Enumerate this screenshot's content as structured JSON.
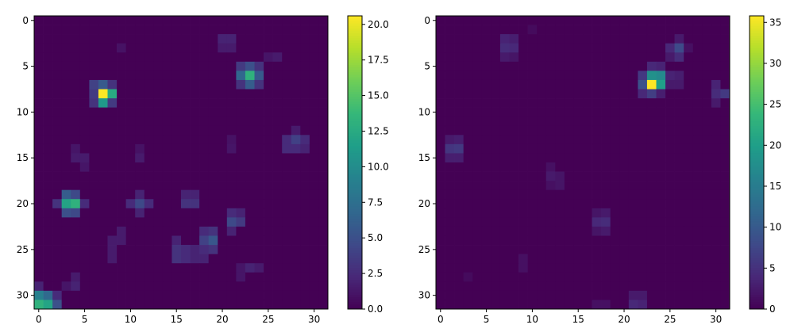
{
  "colormap": "viridis",
  "colors": {
    "viridis_stops": [
      "#440154",
      "#482878",
      "#3e4a89",
      "#31688e",
      "#26828e",
      "#1f9e89",
      "#35b779",
      "#6ece58",
      "#b5de2b",
      "#fde725"
    ]
  },
  "chart_data": [
    {
      "type": "heatmap",
      "title": "",
      "xlabel": "",
      "ylabel": "",
      "grid": false,
      "shape": [
        32,
        32
      ],
      "x_ticks": [
        "0",
        "5",
        "10",
        "15",
        "20",
        "25",
        "30"
      ],
      "y_ticks": [
        "0",
        "5",
        "10",
        "15",
        "20",
        "25",
        "30"
      ],
      "colorbar": {
        "vmin": 0,
        "vmax": 20.6,
        "ticks": [
          "0.0",
          "2.5",
          "5.0",
          "7.5",
          "10.0",
          "12.5",
          "15.0",
          "17.5",
          "20.0"
        ],
        "tick_values": [
          0,
          2.5,
          5,
          7.5,
          10,
          12.5,
          15,
          17.5,
          20
        ]
      },
      "cells": [
        [
          8,
          7,
          20.6
        ],
        [
          8,
          8,
          12.5
        ],
        [
          7,
          7,
          5.8
        ],
        [
          9,
          7,
          11.0
        ],
        [
          7,
          6,
          4.0
        ],
        [
          8,
          6,
          3.5
        ],
        [
          9,
          6,
          3.0
        ],
        [
          7,
          8,
          3.0
        ],
        [
          9,
          8,
          3.5
        ],
        [
          6,
          23,
          13.2
        ],
        [
          7,
          23,
          6.0
        ],
        [
          6,
          22,
          6.8
        ],
        [
          6,
          24,
          5.8
        ],
        [
          5,
          23,
          5.0
        ],
        [
          5,
          22,
          3.5
        ],
        [
          7,
          22,
          3.0
        ],
        [
          5,
          24,
          3.0
        ],
        [
          7,
          24,
          3.0
        ],
        [
          20,
          4,
          13.2
        ],
        [
          20,
          3,
          12.0
        ],
        [
          19,
          3,
          6.0
        ],
        [
          19,
          4,
          4.5
        ],
        [
          21,
          3,
          5.0
        ],
        [
          21,
          4,
          4.5
        ],
        [
          20,
          2,
          3.0
        ],
        [
          20,
          5,
          2.5
        ],
        [
          31,
          0,
          13.2
        ],
        [
          31,
          1,
          12.0
        ],
        [
          30,
          0,
          9.0
        ],
        [
          30,
          1,
          7.0
        ],
        [
          31,
          2,
          5.0
        ],
        [
          30,
          2,
          2.5
        ],
        [
          29,
          0,
          2.0
        ],
        [
          2,
          20,
          2.0
        ],
        [
          2,
          21,
          2.0
        ],
        [
          3,
          20,
          1.5
        ],
        [
          3,
          21,
          1.5
        ],
        [
          4,
          26,
          1.5
        ],
        [
          4,
          25,
          1.2
        ],
        [
          3,
          9,
          1.0
        ],
        [
          20,
          11,
          4.5
        ],
        [
          20,
          10,
          2.5
        ],
        [
          20,
          12,
          2.5
        ],
        [
          19,
          11,
          2.0
        ],
        [
          21,
          11,
          2.0
        ],
        [
          20,
          16,
          3.0
        ],
        [
          20,
          17,
          3.0
        ],
        [
          19,
          16,
          2.0
        ],
        [
          19,
          17,
          2.0
        ],
        [
          22,
          21,
          4.5
        ],
        [
          22,
          22,
          3.5
        ],
        [
          21,
          21,
          2.5
        ],
        [
          21,
          22,
          2.0
        ],
        [
          23,
          21,
          2.0
        ],
        [
          24,
          19,
          5.5
        ],
        [
          24,
          18,
          4.0
        ],
        [
          23,
          19,
          3.0
        ],
        [
          25,
          19,
          3.0
        ],
        [
          25,
          18,
          2.5
        ],
        [
          23,
          18,
          2.5
        ],
        [
          25,
          15,
          3.0
        ],
        [
          26,
          15,
          3.0
        ],
        [
          25,
          16,
          2.5
        ],
        [
          26,
          16,
          2.5
        ],
        [
          26,
          17,
          2.0
        ],
        [
          26,
          18,
          2.0
        ],
        [
          25,
          17,
          2.0
        ],
        [
          24,
          15,
          2.0
        ],
        [
          24,
          9,
          1.5
        ],
        [
          24,
          8,
          1.5
        ],
        [
          23,
          9,
          1.5
        ],
        [
          25,
          8,
          1.5
        ],
        [
          26,
          8,
          1.5
        ],
        [
          13,
          28,
          4.0
        ],
        [
          13,
          27,
          2.5
        ],
        [
          14,
          28,
          2.5
        ],
        [
          14,
          27,
          2.5
        ],
        [
          12,
          28,
          1.5
        ],
        [
          13,
          29,
          2.5
        ],
        [
          14,
          29,
          2.0
        ],
        [
          14,
          21,
          1.2
        ],
        [
          13,
          21,
          1.0
        ],
        [
          15,
          4,
          1.5
        ],
        [
          15,
          5,
          1.5
        ],
        [
          14,
          4,
          1.2
        ],
        [
          16,
          5,
          1.2
        ],
        [
          15,
          11,
          1.5
        ],
        [
          14,
          11,
          1.0
        ],
        [
          29,
          4,
          2.0
        ],
        [
          28,
          4,
          1.5
        ],
        [
          29,
          3,
          1.2
        ],
        [
          27,
          23,
          2.0
        ],
        [
          27,
          24,
          1.5
        ],
        [
          28,
          22,
          1.2
        ],
        [
          27,
          22,
          1.2
        ]
      ]
    },
    {
      "type": "heatmap",
      "title": "",
      "xlabel": "",
      "ylabel": "",
      "grid": false,
      "shape": [
        32,
        32
      ],
      "x_ticks": [
        "0",
        "5",
        "10",
        "15",
        "20",
        "25",
        "30"
      ],
      "y_ticks": [
        "0",
        "5",
        "10",
        "15",
        "20",
        "25",
        "30"
      ],
      "colorbar": {
        "vmin": 0,
        "vmax": 35.8,
        "ticks": [
          "0",
          "5",
          "10",
          "15",
          "20",
          "25",
          "30",
          "35"
        ],
        "tick_values": [
          0,
          5,
          10,
          15,
          20,
          25,
          30,
          35
        ]
      },
      "cells": [
        [
          7,
          23,
          35.8
        ],
        [
          6,
          23,
          18.0
        ],
        [
          6,
          24,
          17.0
        ],
        [
          7,
          24,
          20.0
        ],
        [
          7,
          22,
          9.0
        ],
        [
          6,
          22,
          6.0
        ],
        [
          8,
          23,
          6.5
        ],
        [
          8,
          22,
          4.0
        ],
        [
          5,
          23,
          4.0
        ],
        [
          5,
          24,
          3.5
        ],
        [
          8,
          24,
          3.0
        ],
        [
          6,
          25,
          3.5
        ],
        [
          6,
          26,
          3.0
        ],
        [
          7,
          25,
          2.5
        ],
        [
          7,
          26,
          2.5
        ],
        [
          3,
          26,
          8.0
        ],
        [
          3,
          25,
          4.0
        ],
        [
          4,
          26,
          4.5
        ],
        [
          2,
          26,
          2.5
        ],
        [
          4,
          25,
          2.5
        ],
        [
          3,
          27,
          1.5
        ],
        [
          8,
          31,
          6.0
        ],
        [
          8,
          30,
          4.5
        ],
        [
          7,
          30,
          3.5
        ],
        [
          9,
          30,
          2.5
        ],
        [
          14,
          2,
          6.0
        ],
        [
          14,
          1,
          5.5
        ],
        [
          13,
          2,
          3.0
        ],
        [
          15,
          2,
          3.0
        ],
        [
          15,
          1,
          3.0
        ],
        [
          13,
          1,
          2.5
        ],
        [
          3,
          7,
          4.5
        ],
        [
          3,
          8,
          4.0
        ],
        [
          2,
          7,
          3.5
        ],
        [
          2,
          8,
          3.0
        ],
        [
          4,
          7,
          2.5
        ],
        [
          4,
          8,
          2.0
        ],
        [
          22,
          18,
          4.5
        ],
        [
          22,
          17,
          4.0
        ],
        [
          21,
          18,
          2.5
        ],
        [
          23,
          18,
          2.5
        ],
        [
          21,
          17,
          2.0
        ],
        [
          23,
          17,
          2.0
        ],
        [
          31,
          21,
          4.0
        ],
        [
          31,
          22,
          3.5
        ],
        [
          30,
          21,
          2.5
        ],
        [
          30,
          22,
          2.5
        ],
        [
          31,
          17,
          1.5
        ],
        [
          31,
          18,
          1.5
        ],
        [
          17,
          12,
          2.5
        ],
        [
          17,
          13,
          2.0
        ],
        [
          16,
          12,
          1.5
        ],
        [
          18,
          13,
          2.0
        ],
        [
          18,
          12,
          1.5
        ],
        [
          26,
          9,
          1.5
        ],
        [
          27,
          9,
          1.5
        ],
        [
          28,
          3,
          1.0
        ],
        [
          1,
          10,
          1.0
        ]
      ]
    }
  ]
}
